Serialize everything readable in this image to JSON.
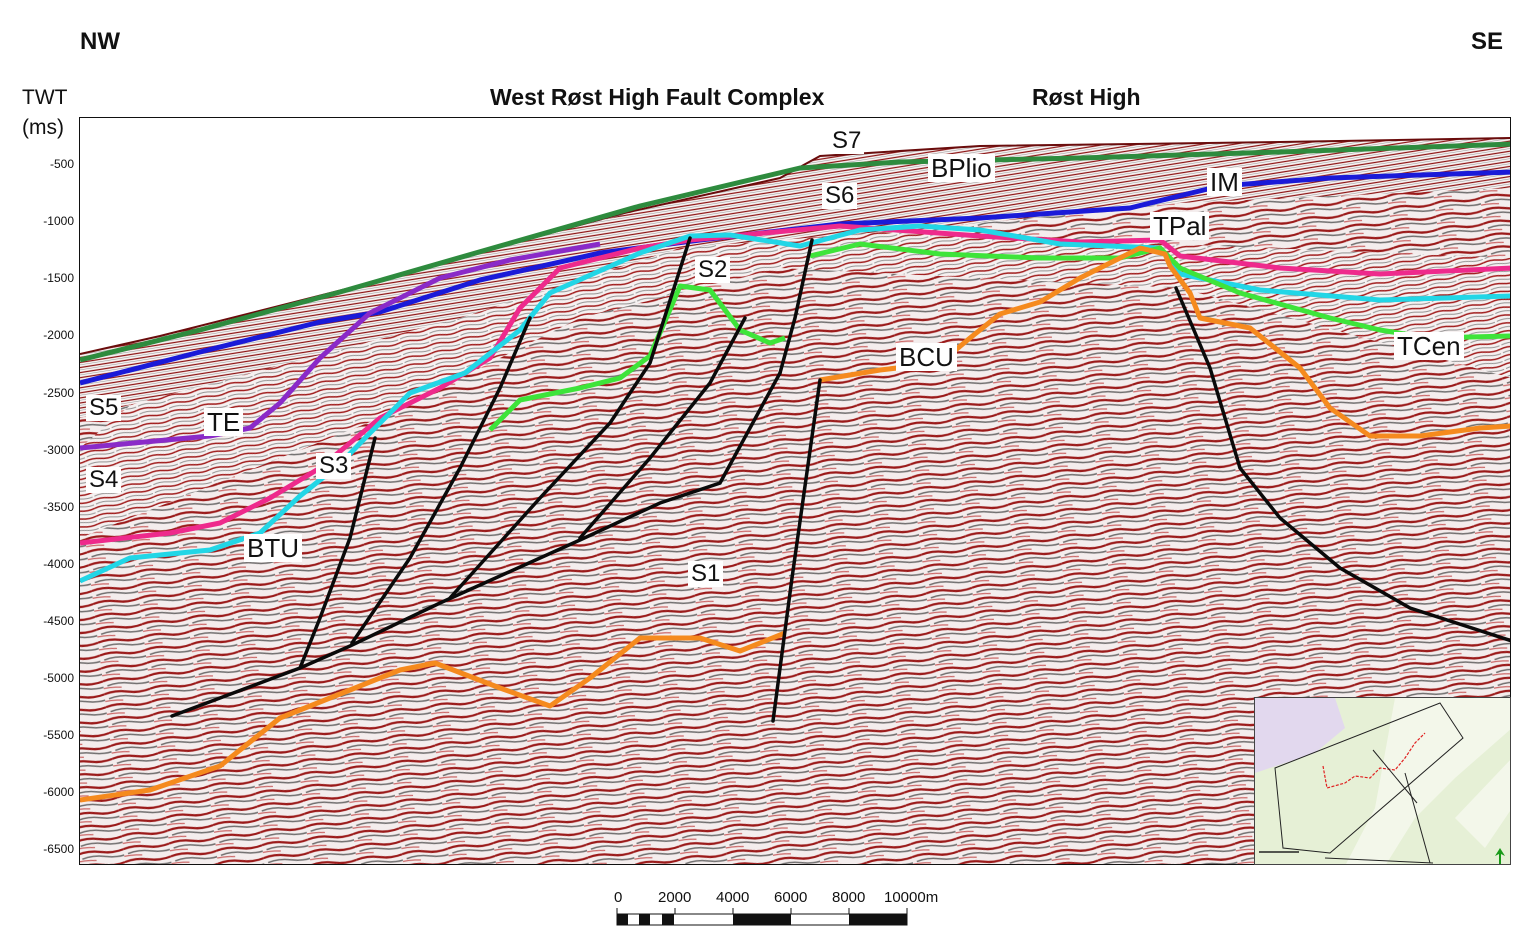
{
  "header": {
    "dir_left": "NW",
    "dir_right": "SE",
    "axis_label_line1": "TWT",
    "axis_label_line2": "(ms)",
    "region_left": "West Røst High Fault Complex",
    "region_right": "Røst High"
  },
  "y_axis": {
    "ticks": [
      "-500",
      "-1000",
      "-1500",
      "-2000",
      "-2500",
      "-3000",
      "-3500",
      "-4000",
      "-4500",
      "-5000",
      "-5500",
      "-6000",
      "-6500"
    ]
  },
  "horizon_labels": {
    "s7": "S7",
    "bplio": "BPlio",
    "s6": "S6",
    "im": "IM",
    "tpal": "TPal",
    "s2": "S2",
    "bcu": "BCU",
    "tcen": "TCen",
    "s5": "S5",
    "te": "TE",
    "s3": "S3",
    "s4": "S4",
    "btu": "BTU",
    "s1": "S1"
  },
  "horizon_colors": {
    "bplio": "#2e8b3e",
    "im": "#1a1ad8",
    "tpal": "#ee2a8c",
    "btu": "#22d6e6",
    "te": "#8a2ac8",
    "tcen": "#3ee43a",
    "bcu": "#f58a1e",
    "fault": "#0a0a0a"
  },
  "scale_bar": {
    "labels": [
      "0",
      "2000",
      "4000",
      "6000",
      "8000",
      "10000m"
    ]
  }
}
